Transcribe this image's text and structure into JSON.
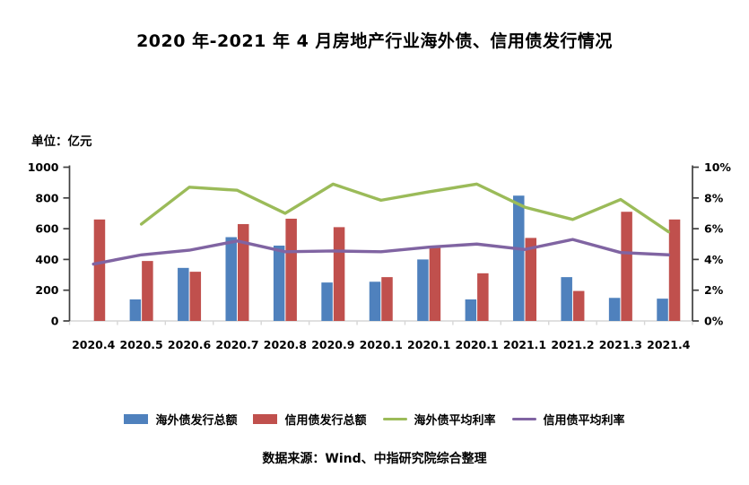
{
  "title": "2020 年-2021 年 4 月房地产行业海外债、信用债发行情况",
  "unit_label": "单位：亿元",
  "source": "数据来源：Wind、中指研究院综合整理",
  "colors": {
    "overseas_bar": "#4F81BD",
    "credit_bar": "#C0504D",
    "overseas_rate_line": "#9BBB59",
    "credit_rate_line": "#8064A2",
    "axis": "#3f3f3f",
    "baseline": "#d6d6d6",
    "text": "#000000"
  },
  "legend": {
    "items": [
      {
        "label": "海外债发行总额",
        "type": "bar",
        "color_key": "overseas_bar"
      },
      {
        "label": "信用债发行总额",
        "type": "bar",
        "color_key": "credit_bar"
      },
      {
        "label": "海外债平均利率",
        "type": "line",
        "color_key": "overseas_rate_line"
      },
      {
        "label": "信用债平均利率",
        "type": "line",
        "color_key": "credit_rate_line"
      }
    ]
  },
  "chart_data": {
    "type": "bar",
    "subtype": "combo-bar-line",
    "title": "2020 年-2021 年 4 月房地产行业海外债、信用债发行情况",
    "categories": [
      "2020.4",
      "2020.5",
      "2020.6",
      "2020.7",
      "2020.8",
      "2020.9",
      "2020.1",
      "2020.1",
      "2020.1",
      "2021.1",
      "2021.2",
      "2021.3",
      "2021.4"
    ],
    "series": [
      {
        "key": "overseas-issuance",
        "name": "海外债发行总额",
        "type": "bar",
        "axis": "left",
        "color": "#4F81BD",
        "values": [
          null,
          140,
          345,
          545,
          490,
          250,
          255,
          400,
          140,
          815,
          285,
          150,
          145
        ]
      },
      {
        "key": "credit-issuance",
        "name": "信用债发行总额",
        "type": "bar",
        "axis": "left",
        "color": "#C0504D",
        "values": [
          660,
          390,
          320,
          630,
          665,
          610,
          285,
          475,
          310,
          540,
          195,
          710,
          660
        ]
      },
      {
        "key": "overseas-rate",
        "name": "海外债平均利率",
        "type": "line",
        "axis": "right",
        "color": "#9BBB59",
        "values": [
          null,
          6.3,
          8.7,
          8.5,
          7.0,
          8.9,
          7.85,
          8.4,
          8.9,
          7.4,
          6.6,
          7.9,
          5.8
        ]
      },
      {
        "key": "credit-rate",
        "name": "信用债平均利率",
        "type": "line",
        "axis": "right",
        "color": "#8064A2",
        "values": [
          3.7,
          4.3,
          4.6,
          5.2,
          4.5,
          4.55,
          4.5,
          4.8,
          5.0,
          4.65,
          5.3,
          4.45,
          4.3
        ]
      }
    ],
    "left_axis": {
      "label": "单位：亿元",
      "min": 0,
      "max": 1000,
      "step": 200,
      "suffix": ""
    },
    "right_axis": {
      "min": 0,
      "max": 10,
      "step": 2,
      "suffix": "%"
    },
    "grid": false,
    "legend_position": "bottom",
    "legend_entries": [
      "海外债发行总额",
      "信用债发行总额",
      "海外债平均利率",
      "信用债平均利率"
    ],
    "source": "数据来源：Wind、中指研究院综合整理"
  }
}
